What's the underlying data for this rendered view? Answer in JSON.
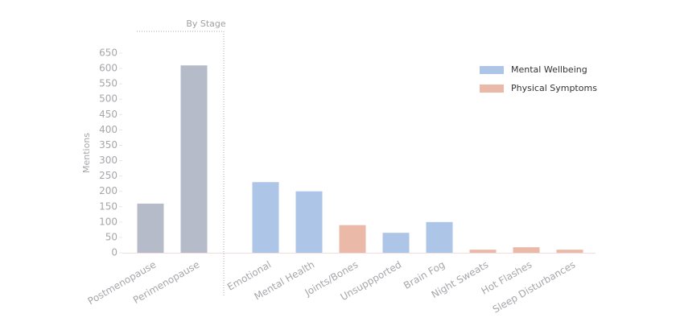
{
  "chart_data": {
    "type": "bar",
    "annotation": "By Stage",
    "y_label": "Mentions",
    "categories": [
      "Postmenopause",
      "Perimenopause",
      "Emotional",
      "Mental Health",
      "Joints/Bones",
      "Unsuppported",
      "Brain Fog",
      "Night Sweats",
      "Hot Flashes",
      "Sleep Disturbances"
    ],
    "values": [
      160,
      610,
      230,
      200,
      90,
      65,
      100,
      10,
      18,
      10
    ],
    "colors": [
      "#b5bbc8",
      "#b5bbc8",
      "#adc6e8",
      "#adc6e8",
      "#ebb9a8",
      "#adc6e8",
      "#adc6e8",
      "#ebb9a8",
      "#ebb9a8",
      "#ebb9a8"
    ],
    "legend": [
      {
        "name": "Mental Wellbeing",
        "color": "#adc6e8"
      },
      {
        "name": "Physical Symptoms",
        "color": "#ebb9a8"
      }
    ],
    "ylim": [
      0,
      650
    ],
    "yticks": [
      0,
      50,
      100,
      150,
      200,
      250,
      300,
      350,
      400,
      450,
      500,
      550,
      600,
      650
    ]
  }
}
